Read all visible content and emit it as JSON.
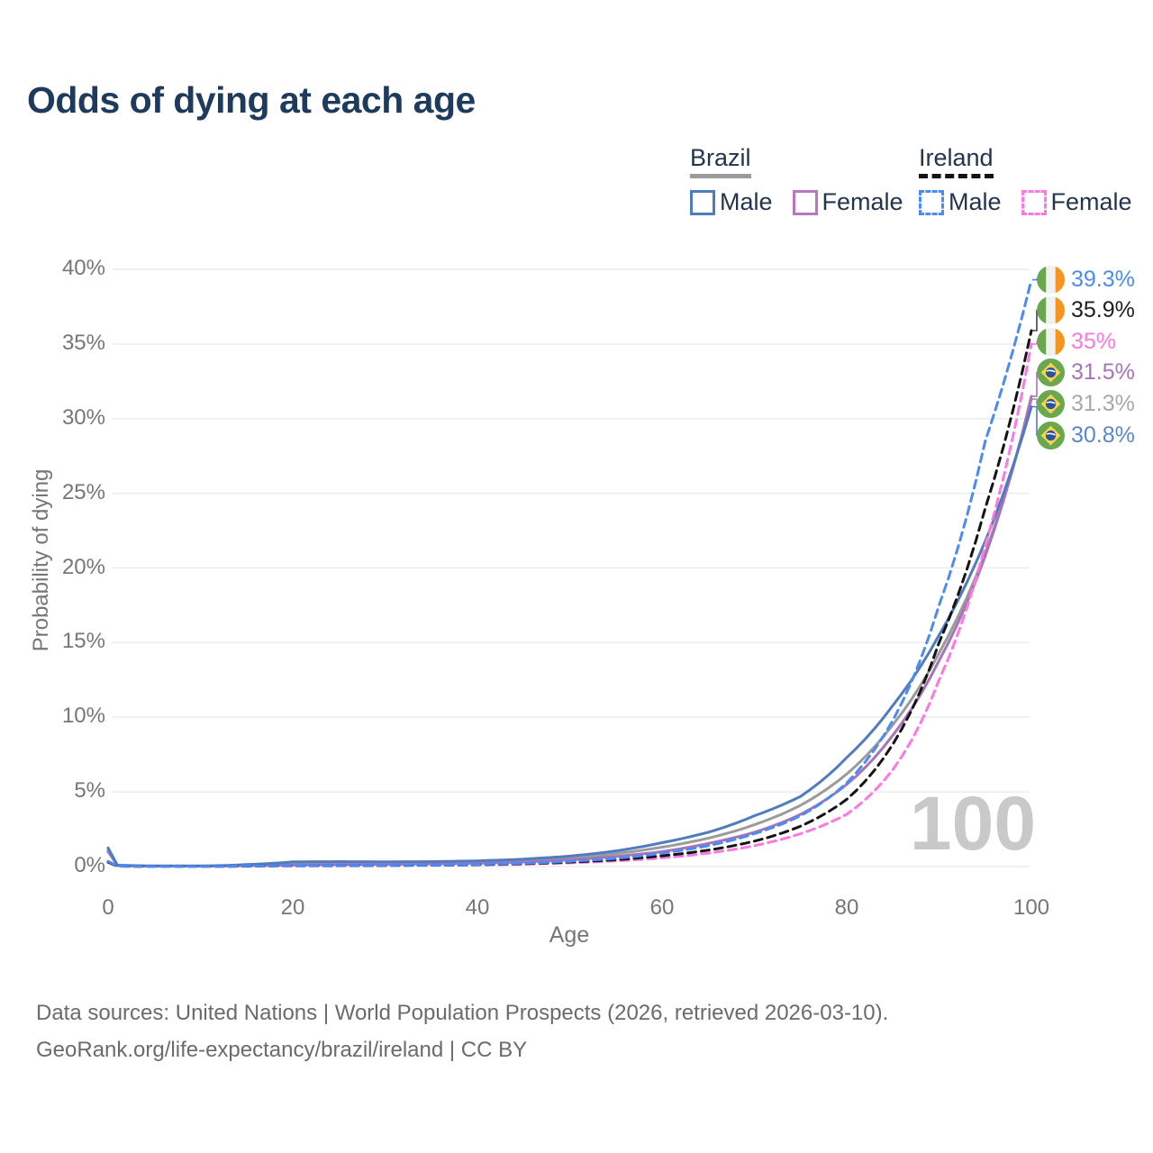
{
  "title": "Odds of dying at each age",
  "legend": {
    "brazil": {
      "label": "Brazil",
      "male": "Male",
      "female": "Female"
    },
    "ireland": {
      "label": "Ireland",
      "male": "Male",
      "female": "Female"
    }
  },
  "watermark": "100",
  "footer": {
    "line1": "Data sources: United Nations | World Population Prospects (2026, retrieved 2026-03-10).",
    "line2": "GeoRank.org/life-expectancy/brazil/ireland | CC BY"
  },
  "colors": {
    "title_navy": "#1e3a5c",
    "brazil_male": "#4f7cbe",
    "brazil_total": "#9b9b9b",
    "brazil_female": "#a873b8",
    "ireland_male": "#4b8bf5",
    "ireland_total": "#141414",
    "ireland_female": "#ff77e0",
    "gridline": "#ececec",
    "axis_text": "#767676",
    "watermark_gray": "#c9c9c9"
  },
  "chart_data": {
    "type": "line",
    "title": "Odds of dying at each age",
    "xlabel": "Age",
    "ylabel": "Probability of dying",
    "xlim": [
      0,
      100
    ],
    "ylim": [
      0,
      40
    ],
    "grid": "horizontal",
    "legend_position": "top-right",
    "x_ticks": [
      {
        "label": "0",
        "value": 0
      },
      {
        "label": "20",
        "value": 20
      },
      {
        "label": "40",
        "value": 40
      },
      {
        "label": "60",
        "value": 60
      },
      {
        "label": "80",
        "value": 80
      },
      {
        "label": "100",
        "value": 100
      }
    ],
    "y_ticks": [
      {
        "label": "0%",
        "value": 0
      },
      {
        "label": "5%",
        "value": 5
      },
      {
        "label": "10%",
        "value": 10
      },
      {
        "label": "15%",
        "value": 15
      },
      {
        "label": "20%",
        "value": 20
      },
      {
        "label": "25%",
        "value": 25
      },
      {
        "label": "30%",
        "value": 30
      },
      {
        "label": "35%",
        "value": 35
      },
      {
        "label": "40%",
        "value": 40
      }
    ],
    "ages": [
      0,
      1,
      5,
      10,
      15,
      20,
      25,
      30,
      35,
      40,
      45,
      50,
      55,
      60,
      65,
      70,
      75,
      80,
      85,
      90,
      95,
      100
    ],
    "series": [
      {
        "id": "brazil-total",
        "name": "Brazil (both sexes)",
        "country": "Brazil",
        "style": "solid",
        "color": "#9b9b9b",
        "values_pct": [
          1.1,
          0.08,
          0.03,
          0.03,
          0.09,
          0.22,
          0.23,
          0.23,
          0.25,
          0.3,
          0.4,
          0.57,
          0.87,
          1.3,
          1.9,
          2.8,
          4.1,
          6.2,
          9.5,
          14.3,
          21.0,
          31.3
        ]
      },
      {
        "id": "brazil-female",
        "name": "Brazil Female",
        "country": "Brazil",
        "style": "solid",
        "color": "#a873b8",
        "values_pct": [
          1.0,
          0.07,
          0.03,
          0.03,
          0.06,
          0.11,
          0.13,
          0.15,
          0.18,
          0.23,
          0.31,
          0.45,
          0.68,
          1.0,
          1.55,
          2.3,
          3.5,
          5.5,
          8.8,
          13.8,
          20.8,
          31.5
        ]
      },
      {
        "id": "brazil-male",
        "name": "Brazil Male",
        "country": "Brazil",
        "style": "solid",
        "color": "#4f7cbe",
        "values_pct": [
          1.25,
          0.09,
          0.04,
          0.04,
          0.13,
          0.32,
          0.33,
          0.32,
          0.33,
          0.38,
          0.5,
          0.7,
          1.05,
          1.6,
          2.3,
          3.4,
          4.7,
          7.3,
          10.8,
          15.5,
          21.8,
          30.8
        ]
      },
      {
        "id": "ireland-female",
        "name": "Ireland Female",
        "country": "Ireland",
        "style": "dashed",
        "color": "#ff77e0",
        "values_pct": [
          0.28,
          0.02,
          0.01,
          0.01,
          0.02,
          0.04,
          0.05,
          0.06,
          0.08,
          0.11,
          0.16,
          0.25,
          0.38,
          0.58,
          0.9,
          1.4,
          2.2,
          3.5,
          6.5,
          12.5,
          21.5,
          35.0
        ]
      },
      {
        "id": "ireland-total",
        "name": "Ireland (both sexes)",
        "country": "Ireland",
        "style": "dashed",
        "color": "#141414",
        "values_pct": [
          0.3,
          0.03,
          0.01,
          0.01,
          0.03,
          0.06,
          0.07,
          0.08,
          0.1,
          0.13,
          0.19,
          0.3,
          0.46,
          0.72,
          1.1,
          1.7,
          2.7,
          4.5,
          8.2,
          15.0,
          24.0,
          35.9
        ]
      },
      {
        "id": "ireland-male",
        "name": "Ireland Male",
        "country": "Ireland",
        "style": "dashed",
        "color": "#4b8bf5",
        "values_pct": [
          0.35,
          0.03,
          0.01,
          0.01,
          0.04,
          0.07,
          0.08,
          0.09,
          0.11,
          0.15,
          0.22,
          0.35,
          0.55,
          0.9,
          1.4,
          2.2,
          3.4,
          5.6,
          9.8,
          17.5,
          28.5,
          39.3
        ]
      }
    ],
    "end_labels": [
      {
        "series_id": "ireland-male",
        "text": "39.3%",
        "color": "#4b8bf5",
        "flag": "ireland"
      },
      {
        "series_id": "ireland-total",
        "text": "35.9%",
        "color": "#1f1f1f",
        "flag": "ireland"
      },
      {
        "series_id": "ireland-female",
        "text": "35%",
        "color": "#ff77e0",
        "flag": "ireland"
      },
      {
        "series_id": "brazil-female",
        "text": "31.5%",
        "color": "#a873b8",
        "flag": "brazil"
      },
      {
        "series_id": "brazil-total",
        "text": "31.3%",
        "color": "#a8a8a8",
        "flag": "brazil"
      },
      {
        "series_id": "brazil-male",
        "text": "30.8%",
        "color": "#5987d2",
        "flag": "brazil"
      }
    ]
  }
}
